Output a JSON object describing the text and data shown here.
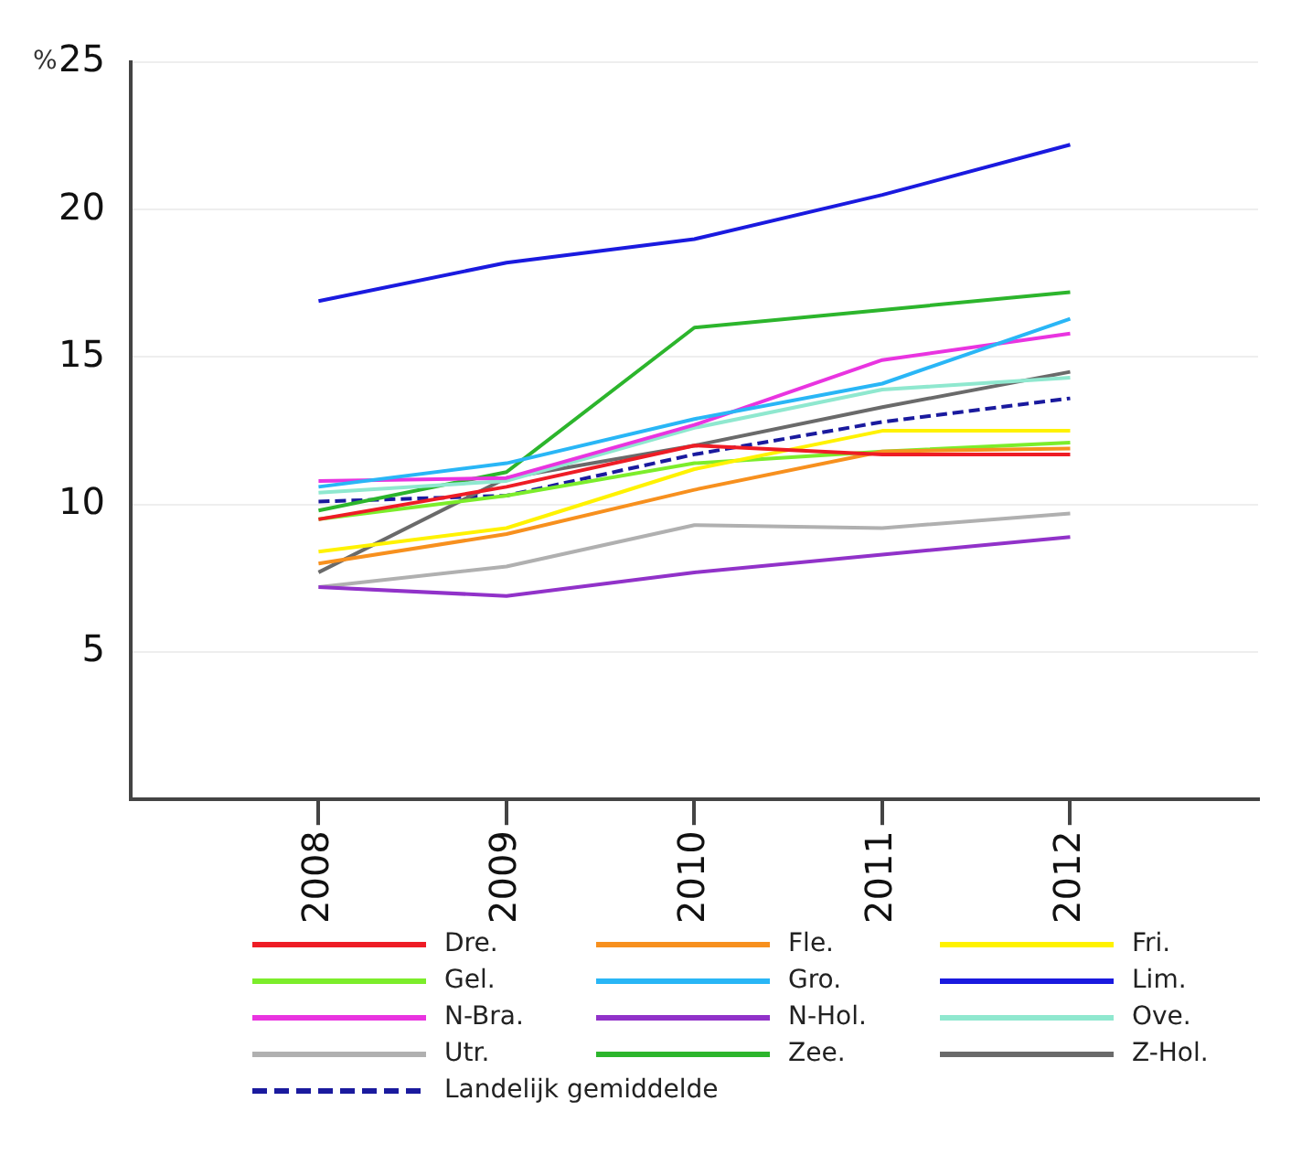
{
  "chart_data": {
    "type": "line",
    "ylabel": "%",
    "x": [
      2008,
      2009,
      2010,
      2011,
      2012
    ],
    "xlim": [
      2007,
      2013
    ],
    "xticks": [
      2008,
      2009,
      2010,
      2011,
      2012
    ],
    "ylim": [
      0,
      25
    ],
    "yticks": [
      5,
      10,
      15,
      20,
      25
    ],
    "grid": "y",
    "legend": "bottom",
    "marker": "none",
    "line_style": "solid",
    "series": [
      {
        "name": "Dre.",
        "color": "#ee1c25",
        "values": [
          9.5,
          10.6,
          12.0,
          11.7,
          11.7
        ]
      },
      {
        "name": "Fle.",
        "color": "#f7901e",
        "values": [
          8.0,
          9.0,
          10.5,
          11.8,
          11.9
        ]
      },
      {
        "name": "Fri.",
        "color": "#fff200",
        "values": [
          8.4,
          9.2,
          11.2,
          12.5,
          12.5
        ]
      },
      {
        "name": "Gel.",
        "color": "#7ced2b",
        "values": [
          9.5,
          10.3,
          11.4,
          11.8,
          12.1
        ]
      },
      {
        "name": "Gro.",
        "color": "#29b6f6",
        "values": [
          10.6,
          11.4,
          12.9,
          14.1,
          16.3
        ]
      },
      {
        "name": "Lim.",
        "color": "#1a1adf",
        "values": [
          16.9,
          18.2,
          19.0,
          20.5,
          22.2
        ]
      },
      {
        "name": "N-Bra.",
        "color": "#e934e0",
        "values": [
          10.8,
          10.9,
          12.7,
          14.9,
          15.8
        ]
      },
      {
        "name": "N-Hol.",
        "color": "#9132c9",
        "values": [
          7.2,
          6.9,
          7.7,
          8.3,
          8.9
        ]
      },
      {
        "name": "Ove.",
        "color": "#8fe8cf",
        "values": [
          10.4,
          10.8,
          12.6,
          13.9,
          14.3
        ]
      },
      {
        "name": "Utr.",
        "color": "#b0b0b0",
        "values": [
          7.2,
          7.9,
          9.3,
          9.2,
          9.7
        ]
      },
      {
        "name": "Zee.",
        "color": "#2cb52c",
        "values": [
          9.8,
          11.1,
          16.0,
          16.6,
          17.2
        ]
      },
      {
        "name": "Z-Hol.",
        "color": "#6a6a6a",
        "values": [
          7.7,
          10.9,
          12.0,
          13.3,
          14.5
        ]
      },
      {
        "name": "Landelijk gemiddelde",
        "color": "#1a1a9e",
        "line_style": "dashed",
        "values": [
          10.1,
          10.3,
          11.7,
          12.8,
          13.6
        ]
      }
    ]
  }
}
